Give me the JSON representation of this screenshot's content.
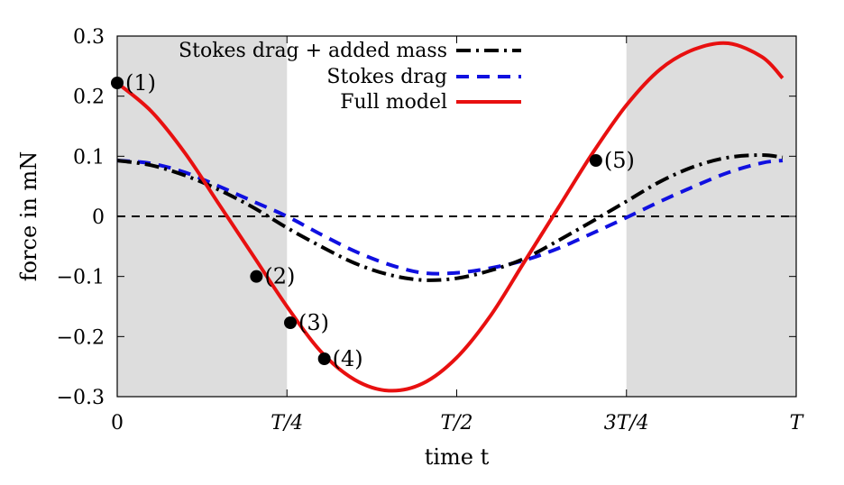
{
  "chart_data": {
    "type": "line",
    "xlabel": "time t",
    "ylabel": "force in mN",
    "xlim": [
      0,
      1
    ],
    "ylim": [
      -0.3,
      0.3
    ],
    "x_ticks": [
      {
        "value": 0,
        "label": "0"
      },
      {
        "value": 0.25,
        "label": "T/4"
      },
      {
        "value": 0.5,
        "label": "T/2"
      },
      {
        "value": 0.75,
        "label": "3T/4"
      },
      {
        "value": 1,
        "label": "T"
      }
    ],
    "y_ticks": [
      {
        "value": 0.3,
        "label": "0.3"
      },
      {
        "value": 0.2,
        "label": "0.2"
      },
      {
        "value": 0.1,
        "label": "0.1"
      },
      {
        "value": 0,
        "label": "0"
      },
      {
        "value": -0.1,
        "label": "−0.1"
      },
      {
        "value": -0.2,
        "label": "−0.2"
      },
      {
        "value": -0.3,
        "label": "−0.3"
      }
    ],
    "shaded_intervals": [
      [
        0,
        0.25
      ],
      [
        0.75,
        1
      ]
    ],
    "zero_line": true,
    "legend_position": "top-left",
    "series": [
      {
        "name": "Stokes drag + added mass",
        "style": "dash-dot",
        "color": "#000000",
        "x": [
          0,
          0.05,
          0.1,
          0.15,
          0.2,
          0.25,
          0.3,
          0.35,
          0.4,
          0.45,
          0.5,
          0.55,
          0.6,
          0.65,
          0.7,
          0.75,
          0.8,
          0.85,
          0.9,
          0.95,
          0.98
        ],
        "y": [
          0.093,
          0.085,
          0.068,
          0.044,
          0.015,
          -0.019,
          -0.05,
          -0.078,
          -0.097,
          -0.106,
          -0.103,
          -0.09,
          -0.07,
          -0.04,
          -0.008,
          0.025,
          0.058,
          0.083,
          0.098,
          0.102,
          0.098
        ]
      },
      {
        "name": "Stokes drag",
        "style": "dashed",
        "color": "#1010e0",
        "x": [
          0,
          0.05,
          0.1,
          0.15,
          0.2,
          0.25,
          0.3,
          0.35,
          0.4,
          0.45,
          0.5,
          0.55,
          0.6,
          0.65,
          0.7,
          0.75,
          0.8,
          0.85,
          0.9,
          0.95,
          0.98
        ],
        "y": [
          0.093,
          0.088,
          0.073,
          0.05,
          0.025,
          0.0,
          -0.03,
          -0.058,
          -0.08,
          -0.094,
          -0.094,
          -0.086,
          -0.073,
          -0.053,
          -0.028,
          -0.002,
          0.025,
          0.05,
          0.073,
          0.089,
          0.093
        ]
      },
      {
        "name": "Full model",
        "style": "solid",
        "color": "#e81010",
        "x": [
          0,
          0.05,
          0.1,
          0.15,
          0.2,
          0.25,
          0.3,
          0.35,
          0.4,
          0.45,
          0.5,
          0.55,
          0.6,
          0.65,
          0.7,
          0.75,
          0.8,
          0.85,
          0.9,
          0.95,
          0.98
        ],
        "y": [
          0.222,
          0.175,
          0.105,
          0.02,
          -0.065,
          -0.15,
          -0.225,
          -0.272,
          -0.29,
          -0.278,
          -0.235,
          -0.165,
          -0.075,
          0.015,
          0.105,
          0.185,
          0.245,
          0.278,
          0.288,
          0.265,
          0.23
        ]
      }
    ],
    "points": [
      {
        "label": "(1)",
        "x": 0.0,
        "y": 0.222
      },
      {
        "label": "(2)",
        "x": 0.205,
        "y": -0.1
      },
      {
        "label": "(3)",
        "x": 0.255,
        "y": -0.177
      },
      {
        "label": "(4)",
        "x": 0.305,
        "y": -0.237
      },
      {
        "label": "(5)",
        "x": 0.705,
        "y": 0.093
      }
    ]
  }
}
